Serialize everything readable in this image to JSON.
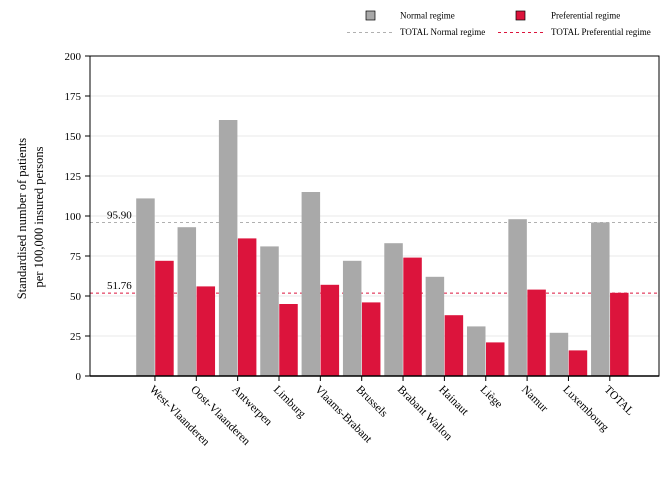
{
  "chart_data": {
    "type": "bar",
    "ylabel_lines": [
      "Standardised number of patients",
      "per 100,000 insured persons"
    ],
    "ylim": [
      0,
      200
    ],
    "yticks": [
      0,
      25,
      50,
      75,
      100,
      125,
      150,
      175,
      200
    ],
    "grid": true,
    "legend_position": "top-right",
    "categories": [
      "West-Vlaanderen",
      "Oost-Vlaanderen",
      "Antwerpen",
      "Limburg",
      "Vlaams-Brabant",
      "Brussels",
      "Brabant Wallon",
      "Hainaut",
      "Liège",
      "Namur",
      "Luxembourg",
      "TOTAL"
    ],
    "series": [
      {
        "name": "Normal regime",
        "color": "#a9a9a9",
        "values": [
          111,
          93,
          160,
          81,
          115,
          72,
          83,
          62,
          31,
          98,
          27,
          96
        ]
      },
      {
        "name": "Preferential regime",
        "color": "#dc143c",
        "values": [
          72,
          56,
          86,
          45,
          57,
          46,
          74,
          38,
          21,
          54,
          16,
          52
        ]
      }
    ],
    "reference_lines": [
      {
        "name": "TOTAL Normal regime",
        "value": 95.9,
        "label": "95.90",
        "color": "#b0b0b0"
      },
      {
        "name": "TOTAL Preferential regime",
        "value": 51.76,
        "label": "51.76",
        "color": "#dc143c"
      }
    ]
  }
}
